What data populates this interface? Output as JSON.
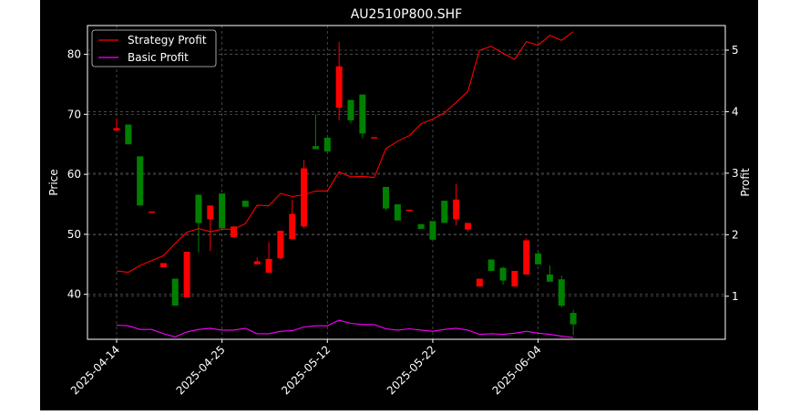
{
  "chart_data": {
    "type": "candlestick",
    "title": "AU2510P800.SHF",
    "xlabel": "",
    "ylabel": "Price",
    "y2label": "Profit",
    "ylim": [
      32.5,
      84.8
    ],
    "y2lim": [
      0.3,
      5.4
    ],
    "yticks": [
      40,
      50,
      60,
      70,
      80
    ],
    "y2ticks": [
      1,
      2,
      3,
      4,
      5
    ],
    "grid": true,
    "legend_position": "top-left",
    "colors": {
      "up": "#008000",
      "down": "#ff0000",
      "strategy": "#ff0000",
      "basic": "#ff00ff",
      "grid": "#555555",
      "background": "#000000",
      "text": "#ffffff"
    },
    "xticks": [
      {
        "index": 0,
        "label": "2025-04-14"
      },
      {
        "index": 9,
        "label": "2025-04-25"
      },
      {
        "index": 18,
        "label": "2025-05-12"
      },
      {
        "index": 27,
        "label": "2025-05-22"
      },
      {
        "index": 36,
        "label": "2025-06-04"
      }
    ],
    "candles": [
      {
        "o": 67.7,
        "h": 69.4,
        "l": 67.2,
        "c": 67.3
      },
      {
        "o": 65.0,
        "h": 68.3,
        "l": 65.0,
        "c": 68.3
      },
      {
        "o": 54.8,
        "h": 63.0,
        "l": 54.8,
        "c": 63.0
      },
      {
        "o": 53.8,
        "h": 53.8,
        "l": 53.7,
        "c": 53.7
      },
      {
        "o": 45.2,
        "h": 45.2,
        "l": 44.5,
        "c": 44.5
      },
      {
        "o": 38.1,
        "h": 42.6,
        "l": 38.1,
        "c": 42.6
      },
      {
        "o": 47.1,
        "h": 47.1,
        "l": 39.5,
        "c": 39.5
      },
      {
        "o": 51.9,
        "h": 56.6,
        "l": 47.0,
        "c": 56.6
      },
      {
        "o": 54.8,
        "h": 54.8,
        "l": 47.2,
        "c": 52.5
      },
      {
        "o": 51.0,
        "h": 56.8,
        "l": 51.0,
        "c": 56.8
      },
      {
        "o": 51.3,
        "h": 51.3,
        "l": 49.5,
        "c": 49.5
      },
      {
        "o": 54.6,
        "h": 55.6,
        "l": 54.6,
        "c": 55.6
      },
      {
        "o": 45.5,
        "h": 46.2,
        "l": 45.0,
        "c": 45.0
      },
      {
        "o": 45.9,
        "h": 48.7,
        "l": 43.6,
        "c": 43.6
      },
      {
        "o": 50.6,
        "h": 50.6,
        "l": 45.8,
        "c": 46.0
      },
      {
        "o": 53.4,
        "h": 55.8,
        "l": 49.2,
        "c": 49.2
      },
      {
        "o": 61.0,
        "h": 62.4,
        "l": 51.0,
        "c": 51.3
      },
      {
        "o": 64.2,
        "h": 70.0,
        "l": 64.2,
        "c": 64.7
      },
      {
        "o": 63.8,
        "h": 66.1,
        "l": 63.8,
        "c": 66.1
      },
      {
        "o": 78.0,
        "h": 82.1,
        "l": 69.0,
        "c": 71.1
      },
      {
        "o": 69.0,
        "h": 72.4,
        "l": 68.5,
        "c": 72.4
      },
      {
        "o": 66.8,
        "h": 73.3,
        "l": 66.0,
        "c": 73.3
      },
      {
        "o": 66.2,
        "h": 66.2,
        "l": 66.0,
        "c": 66.0
      },
      {
        "o": 54.3,
        "h": 57.9,
        "l": 54.0,
        "c": 57.9
      },
      {
        "o": 52.3,
        "h": 55.0,
        "l": 52.3,
        "c": 55.0
      },
      {
        "o": 54.1,
        "h": 54.1,
        "l": 53.9,
        "c": 53.9
      },
      {
        "o": 50.9,
        "h": 51.7,
        "l": 50.9,
        "c": 51.7
      },
      {
        "o": 49.1,
        "h": 52.2,
        "l": 49.1,
        "c": 52.2
      },
      {
        "o": 51.9,
        "h": 55.6,
        "l": 51.9,
        "c": 55.6
      },
      {
        "o": 55.8,
        "h": 58.4,
        "l": 51.5,
        "c": 52.5
      },
      {
        "o": 51.9,
        "h": 51.9,
        "l": 50.5,
        "c": 50.8
      },
      {
        "o": 42.6,
        "h": 42.6,
        "l": 41.3,
        "c": 41.3
      },
      {
        "o": 43.9,
        "h": 45.8,
        "l": 43.9,
        "c": 45.8
      },
      {
        "o": 42.3,
        "h": 44.6,
        "l": 41.6,
        "c": 44.4
      },
      {
        "o": 43.9,
        "h": 43.9,
        "l": 41.3,
        "c": 41.3
      },
      {
        "o": 49.0,
        "h": 49.3,
        "l": 43.3,
        "c": 43.3
      },
      {
        "o": 45.0,
        "h": 47.3,
        "l": 45.0,
        "c": 46.8
      },
      {
        "o": 42.1,
        "h": 44.8,
        "l": 42.1,
        "c": 43.3
      },
      {
        "o": 38.1,
        "h": 43.1,
        "l": 37.8,
        "c": 42.5
      },
      {
        "o": 35.0,
        "h": 37.4,
        "l": 33.2,
        "c": 36.9
      }
    ],
    "series": [
      {
        "name": "Strategy Profit",
        "axis": "right",
        "values": [
          1.41,
          1.39,
          1.5,
          1.58,
          1.66,
          1.86,
          2.04,
          2.1,
          2.05,
          2.09,
          2.09,
          2.18,
          2.48,
          2.47,
          2.67,
          2.62,
          2.65,
          2.71,
          2.71,
          3.02,
          2.94,
          2.95,
          2.93,
          3.4,
          3.52,
          3.61,
          3.8,
          3.88,
          3.98,
          4.15,
          4.33,
          5.0,
          5.06,
          4.95,
          4.85,
          5.14,
          5.08,
          5.24,
          5.16,
          5.3
        ]
      },
      {
        "name": "Basic Profit",
        "axis": "right",
        "values": [
          0.53,
          0.52,
          0.46,
          0.46,
          0.39,
          0.34,
          0.42,
          0.46,
          0.48,
          0.45,
          0.45,
          0.48,
          0.39,
          0.39,
          0.43,
          0.44,
          0.5,
          0.52,
          0.52,
          0.61,
          0.56,
          0.54,
          0.54,
          0.47,
          0.45,
          0.47,
          0.45,
          0.43,
          0.46,
          0.48,
          0.45,
          0.38,
          0.39,
          0.38,
          0.4,
          0.43,
          0.4,
          0.38,
          0.35,
          0.33
        ]
      }
    ]
  }
}
